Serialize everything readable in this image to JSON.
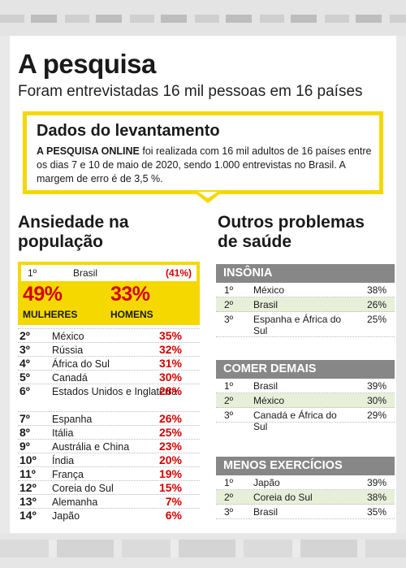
{
  "header": {
    "title": "A pesquisa",
    "subtitle": "Foram entrevistadas 16 mil pessoas em 16 países"
  },
  "levantamento": {
    "title": "Dados do levantamento",
    "lead": "A PESQUISA ONLINE",
    "text": " foi realizada com 16 mil adultos de 16 países entre os dias 7 e 10 de maio de 2020, sendo 1.000 entrevistas no Brasil. A margem de erro é de 3,5 %."
  },
  "ansiedade": {
    "title_line1": "Ansiedade na",
    "title_line2": "população",
    "first": {
      "rank": "1º",
      "name": "Brasil",
      "pct": "(41%)"
    },
    "mulheres_pct": "49%",
    "mulheres_label": "MULHERES",
    "homens_pct": "33%",
    "homens_label": "HOMENS",
    "rows": [
      {
        "rank": "2º",
        "name": "México",
        "pct": "35%"
      },
      {
        "rank": "3º",
        "name": "Rússia",
        "pct": "32%"
      },
      {
        "rank": "4º",
        "name": "África do Sul",
        "pct": "31%"
      },
      {
        "rank": "5º",
        "name": "Canadá",
        "pct": "30%"
      },
      {
        "rank": "6º",
        "name": "Estados Unidos e Inglaterra",
        "pct": "28%"
      },
      {
        "rank": "7º",
        "name": "Espanha",
        "pct": "26%"
      },
      {
        "rank": "8º",
        "name": "Itália",
        "pct": "25%"
      },
      {
        "rank": "9º",
        "name": "Austrália e China",
        "pct": "23%"
      },
      {
        "rank": "10º",
        "name": "Índia",
        "pct": "20%"
      },
      {
        "rank": "11º",
        "name": "França",
        "pct": "19%"
      },
      {
        "rank": "12º",
        "name": "Coreia do Sul",
        "pct": "15%"
      },
      {
        "rank": "13º",
        "name": "Alemanha",
        "pct": "7%"
      },
      {
        "rank": "14º",
        "name": "Japão",
        "pct": "6%"
      }
    ]
  },
  "outros": {
    "title_line1": "Outros problemas",
    "title_line2": "de saúde",
    "insonia": {
      "head": "INSÔNIA",
      "rows": [
        {
          "rank": "1º",
          "name": "México",
          "pct": "38%"
        },
        {
          "rank": "2º",
          "name": "Brasil",
          "pct": "26%"
        },
        {
          "rank": "3º",
          "name": "Espanha e África do Sul",
          "pct": "25%"
        }
      ]
    },
    "comer": {
      "head": "COMER DEMAIS",
      "rows": [
        {
          "rank": "1º",
          "name": "Brasil",
          "pct": "39%"
        },
        {
          "rank": "2º",
          "name": "México",
          "pct": "30%"
        },
        {
          "rank": "3º",
          "name": "Canadá e África do Sul",
          "pct": "29%"
        }
      ]
    },
    "exercicios": {
      "head": "MENOS EXERCÍCIOS",
      "rows": [
        {
          "rank": "1º",
          "name": "Japão",
          "pct": "39%"
        },
        {
          "rank": "2º",
          "name": "Coreia do Sul",
          "pct": "38%"
        },
        {
          "rank": "3º",
          "name": "Brasil",
          "pct": "35%"
        }
      ]
    }
  },
  "colors": {
    "accent_yellow": "#f5d800",
    "accent_red": "#d40000",
    "header_gray": "#878787",
    "alt_row_green": "#e8efd9"
  }
}
